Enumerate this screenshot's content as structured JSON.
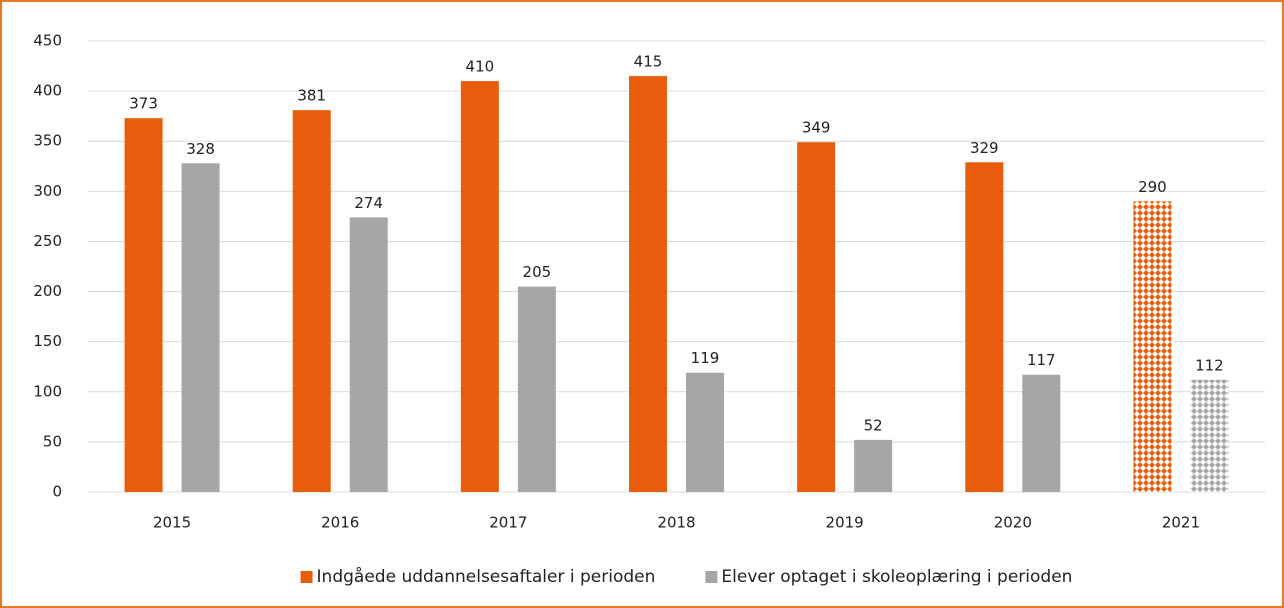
{
  "chart_data": {
    "type": "bar",
    "categories": [
      "2015",
      "2016",
      "2017",
      "2018",
      "2019",
      "2020",
      "2021"
    ],
    "series": [
      {
        "name": "Indgåede uddannelsesaftaler i perioden",
        "color": "#e85d0c",
        "values": [
          373,
          381,
          410,
          415,
          349,
          329,
          290
        ]
      },
      {
        "name": "Elever optaget i skoleoplæring i perioden",
        "color": "#a6a6a6",
        "values": [
          328,
          274,
          205,
          119,
          52,
          117,
          112
        ]
      }
    ],
    "hatched_categories": [
      "2021"
    ],
    "ylim": [
      0,
      450
    ],
    "yticks": [
      0,
      50,
      100,
      150,
      200,
      250,
      300,
      350,
      400,
      450
    ],
    "grid": true,
    "legend": "bottom"
  }
}
